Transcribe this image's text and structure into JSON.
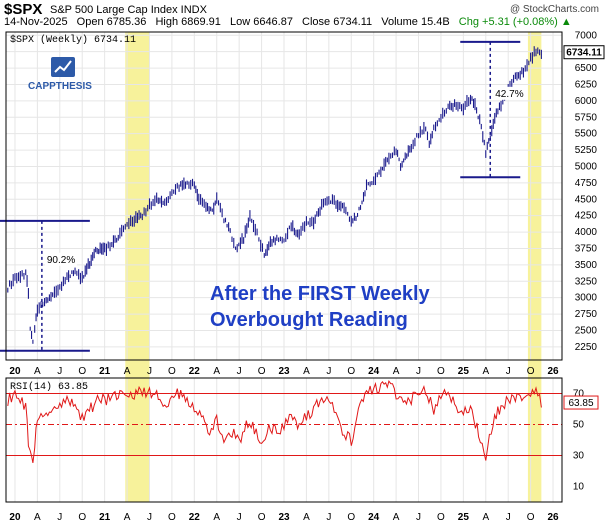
{
  "header": {
    "symbol": "$SPX",
    "name": "S&P 500 Large Cap Index INDX",
    "credit": "@ StockCharts.com",
    "date": "14-Nov-2025",
    "open": "Open 6785.36",
    "high": "High 6869.91",
    "low": "Low 6646.87",
    "close": "Close 6734.11",
    "volume": "Volume 15.4B",
    "chg": "Chg +5.31 (+0.08%) ▲"
  },
  "logo": {
    "text": "CAPPTHESIS"
  },
  "colors": {
    "price": "#1a1a8c",
    "rsi": "#e01818",
    "highlight": "#f6f08a",
    "annotation": "#1f3fc4",
    "measure": "#1a1a8c"
  },
  "chart_data": [
    {
      "type": "bar",
      "legend": "$SPX (Weekly) 6734.11",
      "last_value_label": "6734.11",
      "title": "",
      "annotation": [
        "After the FIRST Weekly",
        "Overbought Reading"
      ],
      "ylim": [
        2050,
        7050
      ],
      "yticks": [
        2250,
        2500,
        2750,
        3000,
        3250,
        3500,
        3750,
        4000,
        4250,
        4500,
        4750,
        5000,
        5250,
        5500,
        5750,
        6000,
        6250,
        6500,
        6750,
        7000
      ],
      "x_labels": [
        "20",
        "A",
        "J",
        "O",
        "21",
        "A",
        "J",
        "O",
        "22",
        "A",
        "J",
        "O",
        "23",
        "A",
        "J",
        "O",
        "24",
        "A",
        "J",
        "O",
        "25",
        "A",
        "J",
        "O",
        "26"
      ],
      "x_positions": [
        2020.0,
        2020.25,
        2020.5,
        2020.75,
        2021.0,
        2021.25,
        2021.5,
        2021.75,
        2022.0,
        2022.25,
        2022.5,
        2022.75,
        2023.0,
        2023.25,
        2023.5,
        2023.75,
        2024.0,
        2024.25,
        2024.5,
        2024.75,
        2025.0,
        2025.25,
        2025.5,
        2025.75,
        2026.0
      ],
      "xlim": [
        2019.9,
        2026.1
      ],
      "highlight_ranges": [
        [
          2021.23,
          2021.5
        ],
        [
          2025.72,
          2025.87
        ]
      ],
      "measurements": [
        {
          "x": 2020.3,
          "low": 2191,
          "high": 4170,
          "label": "90.2%"
        },
        {
          "x": 2025.3,
          "low": 4835,
          "high": 6900,
          "label": "42.7%"
        }
      ],
      "series": {
        "t": [
          2019.92,
          2020.0,
          2020.08,
          2020.12,
          2020.15,
          2020.17,
          2020.2,
          2020.22,
          2020.25,
          2020.33,
          2020.42,
          2020.5,
          2020.58,
          2020.67,
          2020.75,
          2020.8,
          2020.9,
          2021.0,
          2021.08,
          2021.17,
          2021.25,
          2021.33,
          2021.42,
          2021.5,
          2021.58,
          2021.67,
          2021.75,
          2021.83,
          2021.92,
          2022.0,
          2022.05,
          2022.13,
          2022.2,
          2022.25,
          2022.33,
          2022.4,
          2022.46,
          2022.55,
          2022.62,
          2022.7,
          2022.78,
          2022.83,
          2022.92,
          2023.0,
          2023.08,
          2023.17,
          2023.25,
          2023.33,
          2023.42,
          2023.5,
          2023.58,
          2023.67,
          2023.75,
          2023.82,
          2023.92,
          2024.0,
          2024.08,
          2024.17,
          2024.25,
          2024.3,
          2024.42,
          2024.5,
          2024.58,
          2024.62,
          2024.67,
          2024.75,
          2024.83,
          2024.92,
          2025.0,
          2025.08,
          2025.13,
          2025.2,
          2025.25,
          2025.3,
          2025.35,
          2025.42,
          2025.5,
          2025.58,
          2025.67,
          2025.75,
          2025.83,
          2025.87
        ],
        "y": [
          3150,
          3300,
          3350,
          3370,
          3100,
          2500,
          2300,
          2550,
          2800,
          2950,
          3050,
          3150,
          3300,
          3400,
          3300,
          3450,
          3700,
          3750,
          3800,
          3950,
          4150,
          4200,
          4250,
          4400,
          4500,
          4450,
          4600,
          4700,
          4750,
          4750,
          4500,
          4400,
          4300,
          4550,
          4200,
          4000,
          3750,
          3900,
          4250,
          4000,
          3650,
          3800,
          3900,
          3850,
          4100,
          3950,
          4150,
          4150,
          4400,
          4500,
          4450,
          4350,
          4150,
          4250,
          4700,
          4750,
          4950,
          5100,
          5250,
          5000,
          5300,
          5500,
          5600,
          5350,
          5600,
          5750,
          5900,
          5950,
          5900,
          6050,
          5950,
          5600,
          5200,
          5450,
          5750,
          5950,
          6200,
          6350,
          6450,
          6650,
          6800,
          6734
        ]
      }
    },
    {
      "type": "line",
      "legend": "RSI(14) 63.85",
      "last_value_label": "63.85",
      "ylim": [
        0,
        80
      ],
      "yticks": [
        10,
        30,
        50,
        70
      ],
      "levels": [
        30,
        50,
        70
      ],
      "series": {
        "t": [
          2019.92,
          2020.0,
          2020.08,
          2020.12,
          2020.15,
          2020.17,
          2020.2,
          2020.22,
          2020.25,
          2020.33,
          2020.42,
          2020.5,
          2020.58,
          2020.67,
          2020.75,
          2020.83,
          2020.92,
          2021.0,
          2021.08,
          2021.17,
          2021.25,
          2021.33,
          2021.42,
          2021.5,
          2021.58,
          2021.67,
          2021.75,
          2021.83,
          2021.92,
          2022.0,
          2022.08,
          2022.17,
          2022.25,
          2022.33,
          2022.42,
          2022.5,
          2022.58,
          2022.67,
          2022.75,
          2022.83,
          2022.92,
          2023.0,
          2023.08,
          2023.17,
          2023.25,
          2023.33,
          2023.42,
          2023.5,
          2023.58,
          2023.67,
          2023.75,
          2023.83,
          2023.92,
          2024.0,
          2024.08,
          2024.17,
          2024.25,
          2024.33,
          2024.42,
          2024.5,
          2024.58,
          2024.67,
          2024.75,
          2024.83,
          2024.92,
          2025.0,
          2025.08,
          2025.17,
          2025.25,
          2025.33,
          2025.42,
          2025.5,
          2025.58,
          2025.67,
          2025.75,
          2025.83,
          2025.87
        ],
        "y": [
          66,
          70,
          65,
          62,
          40,
          30,
          22,
          38,
          52,
          58,
          60,
          62,
          65,
          62,
          55,
          60,
          65,
          66,
          67,
          68,
          72,
          70,
          71,
          70,
          69,
          62,
          68,
          70,
          67,
          62,
          55,
          45,
          52,
          42,
          45,
          38,
          52,
          47,
          38,
          50,
          45,
          48,
          55,
          48,
          55,
          60,
          65,
          67,
          55,
          45,
          40,
          58,
          70,
          72,
          74,
          77,
          70,
          62,
          66,
          70,
          72,
          60,
          70,
          72,
          62,
          58,
          60,
          45,
          30,
          52,
          62,
          65,
          66,
          68,
          70,
          72,
          63.85
        ]
      }
    }
  ]
}
